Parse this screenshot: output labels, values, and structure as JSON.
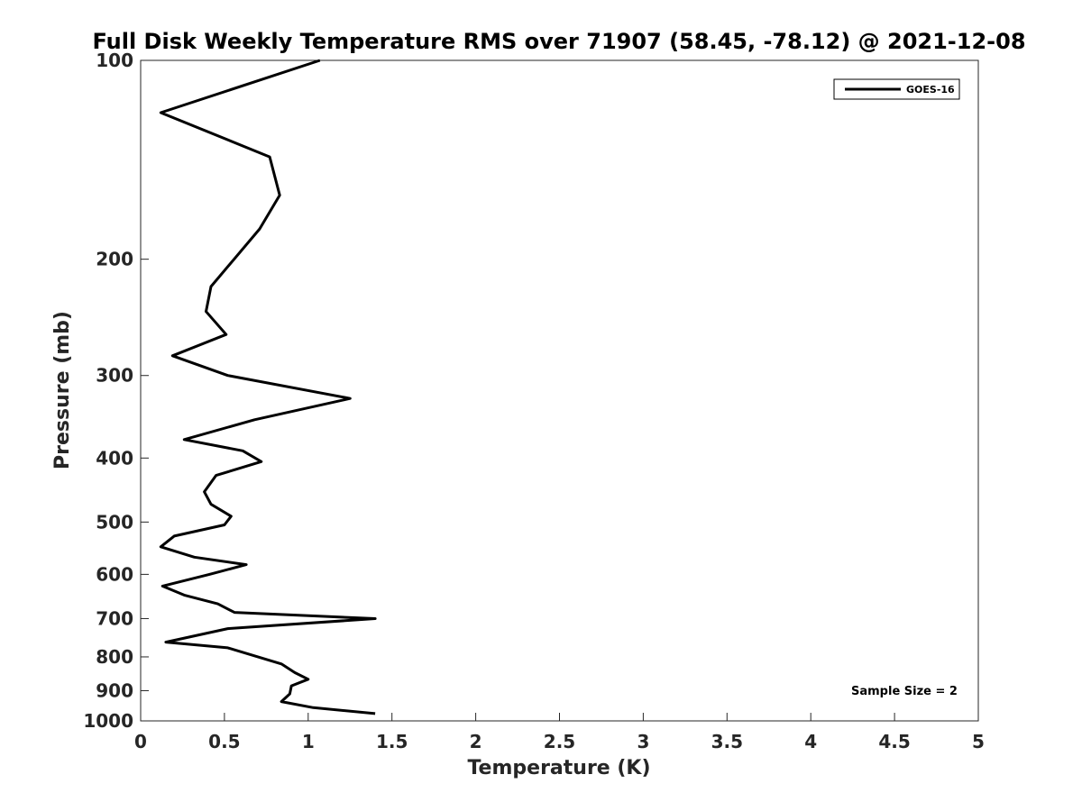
{
  "chart_data": {
    "type": "line",
    "title": "Full Disk Weekly Temperature RMS over 71907 (58.45, -78.12) @ 2021-12-08",
    "xlabel": "Temperature (K)",
    "ylabel": "Pressure (mb)",
    "xlim": [
      0,
      5
    ],
    "ylim": [
      100,
      1000
    ],
    "y_scale": "log",
    "y_reversed": true,
    "x_ticks": [
      "0",
      "0.5",
      "1",
      "1.5",
      "2",
      "2.5",
      "3",
      "3.5",
      "4",
      "4.5",
      "5"
    ],
    "y_ticks": [
      "100",
      "200",
      "300",
      "400",
      "500",
      "600",
      "700",
      "800",
      "900",
      "1000"
    ],
    "grid": false,
    "legend_position": "top-right",
    "annotation": "Sample Size = 2",
    "series": [
      {
        "name": "GOES-16",
        "color": "#000000",
        "points": [
          [
            1.07,
            100
          ],
          [
            0.12,
            120
          ],
          [
            0.77,
            140
          ],
          [
            0.83,
            160
          ],
          [
            0.71,
            180
          ],
          [
            0.42,
            220
          ],
          [
            0.39,
            240
          ],
          [
            0.51,
            260
          ],
          [
            0.19,
            280
          ],
          [
            0.52,
            300
          ],
          [
            1.25,
            325
          ],
          [
            0.68,
            350
          ],
          [
            0.26,
            375
          ],
          [
            0.61,
            390
          ],
          [
            0.72,
            405
          ],
          [
            0.45,
            425
          ],
          [
            0.38,
            450
          ],
          [
            0.42,
            470
          ],
          [
            0.54,
            490
          ],
          [
            0.5,
            505
          ],
          [
            0.2,
            525
          ],
          [
            0.12,
            545
          ],
          [
            0.32,
            565
          ],
          [
            0.63,
            580
          ],
          [
            0.41,
            600
          ],
          [
            0.13,
            625
          ],
          [
            0.26,
            645
          ],
          [
            0.46,
            665
          ],
          [
            0.56,
            685
          ],
          [
            1.4,
            700
          ],
          [
            0.52,
            725
          ],
          [
            0.15,
            760
          ],
          [
            0.52,
            775
          ],
          [
            0.84,
            820
          ],
          [
            0.92,
            845
          ],
          [
            1.0,
            865
          ],
          [
            0.9,
            885
          ],
          [
            0.89,
            910
          ],
          [
            0.84,
            935
          ],
          [
            1.03,
            955
          ],
          [
            1.4,
            975
          ]
        ]
      }
    ]
  }
}
